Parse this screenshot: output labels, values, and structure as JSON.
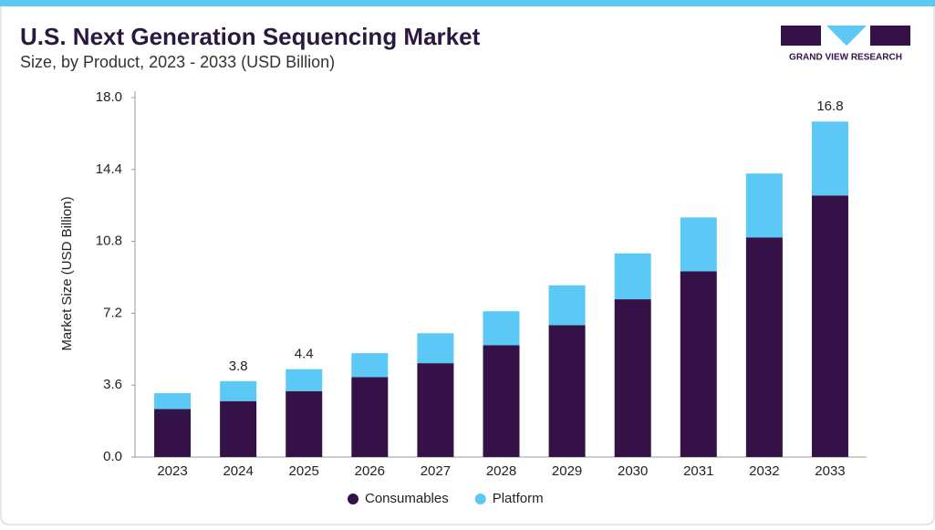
{
  "chart_data": {
    "type": "stacked_bar",
    "title": "U.S. Next Generation Sequencing Market",
    "subtitle": "Size, by Product, 2023 - 2033 (USD Billion)",
    "brand": "GRAND VIEW RESEARCH",
    "y_label": "Market Size (USD Billion)",
    "categories": [
      "2023",
      "2024",
      "2025",
      "2026",
      "2027",
      "2028",
      "2029",
      "2030",
      "2031",
      "2032",
      "2033"
    ],
    "series": [
      {
        "name": "Consumables",
        "color": "#341146",
        "values": [
          2.4,
          2.8,
          3.3,
          4.0,
          4.7,
          5.6,
          6.6,
          7.9,
          9.3,
          11.0,
          13.1
        ]
      },
      {
        "name": "Platform",
        "color": "#5bc8f5",
        "values": [
          0.8,
          1.0,
          1.1,
          1.2,
          1.5,
          1.7,
          2.0,
          2.3,
          2.7,
          3.2,
          3.7
        ]
      }
    ],
    "totals": [
      null,
      3.8,
      4.4,
      null,
      null,
      null,
      null,
      null,
      null,
      null,
      16.8
    ],
    "ylim": [
      0,
      18
    ],
    "yticks": [
      {
        "value": 0,
        "label": "0.0"
      },
      3.6,
      7.2,
      10.8,
      14.4,
      {
        "value": 18,
        "label": "18.0"
      }
    ]
  }
}
